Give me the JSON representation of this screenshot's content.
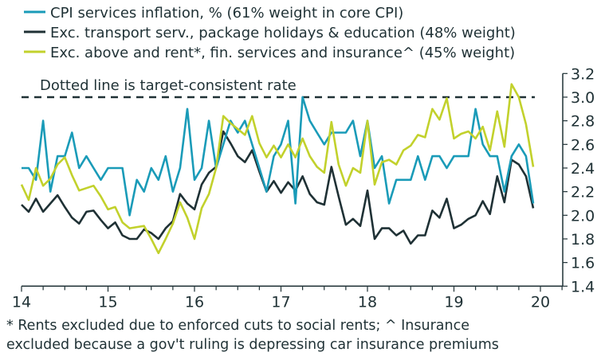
{
  "chart_data": {
    "type": "line",
    "x_start": "2014-01",
    "x_frequency": "monthly",
    "x_ticks": [
      "14",
      "15",
      "16",
      "17",
      "18",
      "19",
      "20"
    ],
    "y_ticks": [
      "1.4",
      "1.6",
      "1.8",
      "2.0",
      "2.2",
      "2.4",
      "2.6",
      "2.8",
      "3.0",
      "3.2"
    ],
    "ylim": [
      1.4,
      3.2
    ],
    "y_axis_side": "right",
    "grid": false,
    "legend_position": "top-left",
    "target_line": {
      "value": 3.0,
      "label": "Dotted line is target-consistent rate"
    },
    "series": [
      {
        "name": "CPI services inflation, % (61% weight in core CPI)",
        "color": "#1a9bb8",
        "values": [
          2.4,
          2.4,
          2.3,
          2.8,
          2.2,
          2.5,
          2.5,
          2.7,
          2.4,
          2.5,
          2.4,
          2.3,
          2.4,
          2.4,
          2.4,
          2.0,
          2.3,
          2.2,
          2.4,
          2.3,
          2.5,
          2.2,
          2.4,
          2.9,
          2.3,
          2.4,
          2.8,
          2.4,
          2.6,
          2.8,
          2.7,
          2.8,
          2.6,
          2.4,
          2.2,
          2.5,
          2.6,
          2.8,
          2.1,
          3.0,
          2.8,
          2.7,
          2.6,
          2.7,
          2.7,
          2.7,
          2.8,
          2.5,
          2.8,
          2.4,
          2.5,
          2.1,
          2.3,
          2.3,
          2.3,
          2.5,
          2.3,
          2.5,
          2.5,
          2.4,
          2.5,
          2.5,
          2.5,
          2.9,
          2.6,
          2.5,
          2.5,
          2.2,
          2.5,
          2.6,
          2.5,
          2.1
        ]
      },
      {
        "name": "Exc. transport serv., package holidays & education (48% weight)",
        "color": "#1f3135",
        "values": [
          2.09,
          2.03,
          2.14,
          2.03,
          2.1,
          2.17,
          2.07,
          1.98,
          1.93,
          2.03,
          2.04,
          1.96,
          1.89,
          1.94,
          1.83,
          1.8,
          1.8,
          1.88,
          1.85,
          1.8,
          1.89,
          1.95,
          2.18,
          2.1,
          2.05,
          2.26,
          2.36,
          2.41,
          2.71,
          2.61,
          2.5,
          2.45,
          2.55,
          2.37,
          2.2,
          2.29,
          2.19,
          2.28,
          2.21,
          2.33,
          2.18,
          2.11,
          2.09,
          2.41,
          2.16,
          1.92,
          1.97,
          1.91,
          2.21,
          1.8,
          1.89,
          1.89,
          1.83,
          1.87,
          1.76,
          1.83,
          1.83,
          2.04,
          1.98,
          2.14,
          1.89,
          1.92,
          1.97,
          2.0,
          2.12,
          2.01,
          2.33,
          2.11,
          2.47,
          2.43,
          2.33,
          2.06
        ]
      },
      {
        "name": "Exc. above and rent*, fin. services and insurance^ (45% weight)",
        "color": "#c2d12c",
        "values": [
          2.26,
          2.13,
          2.4,
          2.25,
          2.31,
          2.43,
          2.49,
          2.34,
          2.21,
          2.23,
          2.25,
          2.16,
          2.05,
          2.07,
          1.94,
          1.89,
          1.9,
          1.91,
          1.8,
          1.68,
          1.8,
          1.93,
          2.11,
          1.98,
          1.8,
          2.06,
          2.18,
          2.4,
          2.84,
          2.78,
          2.73,
          2.68,
          2.84,
          2.61,
          2.49,
          2.59,
          2.49,
          2.6,
          2.49,
          2.65,
          2.5,
          2.41,
          2.36,
          2.79,
          2.43,
          2.25,
          2.4,
          2.36,
          2.8,
          2.26,
          2.45,
          2.47,
          2.43,
          2.55,
          2.59,
          2.68,
          2.66,
          2.9,
          2.81,
          2.99,
          2.65,
          2.69,
          2.71,
          2.65,
          2.75,
          2.55,
          2.88,
          2.58,
          3.11,
          3.0,
          2.77,
          2.41
        ]
      }
    ]
  },
  "footnote": {
    "line1": "* Rents excluded due to enforced cuts to social rents; ^ Insurance",
    "line2": "excluded because a gov't ruling is depressing car insurance premiums"
  }
}
